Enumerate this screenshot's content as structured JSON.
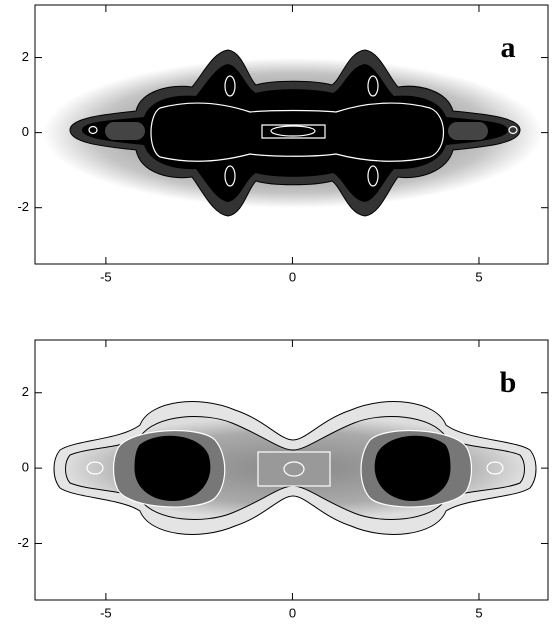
{
  "chart_data": [
    {
      "type": "contour",
      "annotation": "a",
      "xlim": [
        -6.9,
        6.85
      ],
      "ylim": [
        -3.5,
        3.4
      ],
      "xticks": [
        -5,
        0,
        5
      ],
      "yticks": [
        -2,
        0,
        2
      ]
    },
    {
      "type": "contour",
      "annotation": "b",
      "xlim": [
        -6.9,
        6.85
      ],
      "ylim": [
        -3.5,
        3.4
      ],
      "xticks": [
        -5,
        0,
        5
      ],
      "yticks": [
        -2,
        0,
        2
      ]
    }
  ]
}
